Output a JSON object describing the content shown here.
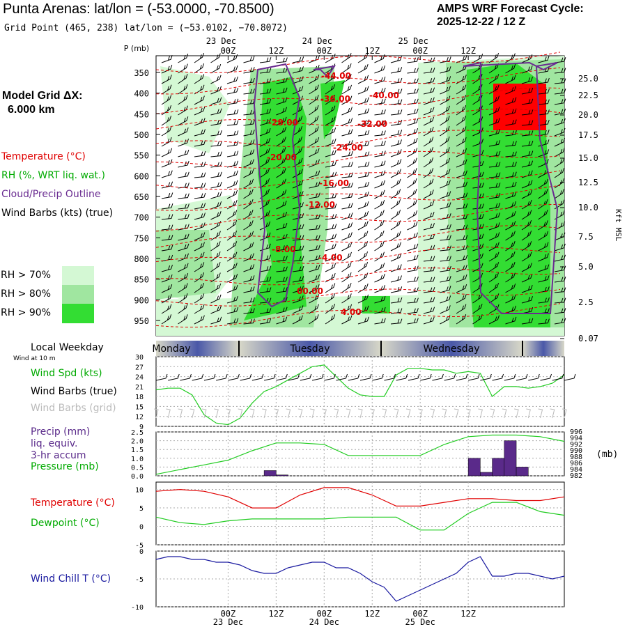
{
  "header": {
    "title": "Punta Arenas:  lat/lon = (-53.0000, -70.8500)",
    "subtitle": "Grid Point (465, 238) lat/lon = (−53.0102, −70.8072)",
    "cycle_line1": "AMPS WRF Forecast Cycle:",
    "cycle_line2": "2025-12-22 / 12  Z"
  },
  "sidebar": {
    "grid_label": "Model Grid ΔX:",
    "grid_value": "6.000 km",
    "legend": {
      "temperature": "Temperature (°C)",
      "rh": "RH (%, WRT liq. wat.)",
      "cloud": "Cloud/Precip Outline",
      "wind": "Wind Barbs (kts) (true)"
    },
    "rh_levels": [
      {
        "label": "RH > 70%",
        "color": "#d4f8d4"
      },
      {
        "label": "RH > 80%",
        "color": "#a0e6a0"
      },
      {
        "label": "RH > 90%",
        "color": "#33dd33"
      }
    ],
    "weekday_label": "Local Weekday",
    "wind_at": "Wind at 10 m"
  },
  "colors": {
    "temperature": "#e00000",
    "rh": "#00aa00",
    "cloud": "#6a2c91",
    "precip": "#5a2a8a",
    "windchill": "#1a1aa0",
    "dewpoint": "#22cc22",
    "gray_barbs": "#bbbbbb"
  },
  "chart_data": [
    {
      "type": "heatmap",
      "name_shown": "",
      "ylabel_left": "P (mb)",
      "ylabel_right": "Kft MSL",
      "time_ticks_top": [
        {
          "label": "00Z",
          "date": "23 Dec"
        },
        {
          "label": "12Z",
          "date": ""
        },
        {
          "label": "00Z",
          "date": "24 Dec"
        },
        {
          "label": "12Z",
          "date": ""
        },
        {
          "label": "00Z",
          "date": "25 Dec"
        },
        {
          "label": "12Z",
          "date": ""
        }
      ],
      "pressure_ticks": [
        350,
        400,
        450,
        500,
        550,
        600,
        650,
        700,
        750,
        800,
        850,
        900,
        950
      ],
      "height_ticks": [
        "25.0",
        "22.5",
        "20.0",
        "17.5",
        "15.0",
        "12.5",
        "10.0",
        "7.5",
        "5.0",
        "2.5",
        "0.07"
      ],
      "temperature_labels": [
        "-44.00",
        "-40.00",
        "-36.00",
        "-32.00",
        "-28.00",
        "-24.00",
        "-20.00",
        "-16.00",
        "-12.00",
        "-8.00",
        "-4.00",
        "00.00",
        "4.00"
      ]
    },
    {
      "type": "line",
      "title": "Wind Spd (kts)",
      "extra_labels": [
        "Wind Barbs (true)",
        "Wind Barbs (grid)"
      ],
      "yticks": [
        9,
        12,
        15,
        18,
        21,
        24,
        27,
        30
      ],
      "ylim": [
        9,
        30
      ],
      "weekdays": [
        "Monday",
        "Tuesday",
        "Wednesday"
      ],
      "x": [
        -18,
        -15,
        -12,
        -9,
        -6,
        -3,
        0,
        3,
        6,
        9,
        12,
        15,
        18,
        21,
        24,
        27,
        30,
        33,
        36,
        39,
        42,
        45,
        48,
        51,
        54,
        57,
        60,
        63,
        66,
        69,
        72,
        75,
        78,
        81,
        84
      ],
      "values": [
        20,
        20.5,
        20.5,
        18.5,
        12.5,
        10,
        9.5,
        11.5,
        16,
        19.5,
        21,
        23,
        25,
        27,
        27.5,
        24,
        20.5,
        18.5,
        18,
        18,
        24.5,
        26.5,
        26.5,
        26,
        26,
        25,
        25.5,
        25,
        18,
        21,
        21,
        20.5,
        21,
        22,
        24.5
      ]
    },
    {
      "type": "bar",
      "title": "Precip (mm) liq. equiv. 3-hr accum",
      "title_lines": [
        "Precip (mm)",
        "liq. equiv.",
        "3-hr accum"
      ],
      "pressure_label": "Pressure (mb)",
      "right_unit": "(mb)",
      "yticks": [
        "0.0",
        "0.5",
        "1.0",
        "1.5",
        "2.0",
        "2.5"
      ],
      "ylim": [
        0,
        2.5
      ],
      "pressure_ticks": [
        982,
        984,
        986,
        988,
        990,
        992,
        994,
        996
      ],
      "pressure_lim": [
        982,
        996
      ],
      "bars": [
        {
          "start": 9,
          "end": 12,
          "value": 0.3
        },
        {
          "start": 12,
          "end": 15,
          "value": 0.05
        },
        {
          "start": 60,
          "end": 63,
          "value": 1.0
        },
        {
          "start": 63,
          "end": 66,
          "value": 0.2
        },
        {
          "start": 66,
          "end": 69,
          "value": 1.0
        },
        {
          "start": 69,
          "end": 72,
          "value": 2.0
        },
        {
          "start": 72,
          "end": 75,
          "value": 0.5
        }
      ],
      "pressure_x": [
        -18,
        -12,
        -6,
        0,
        6,
        12,
        18,
        24,
        30,
        36,
        42,
        48,
        54,
        60,
        66,
        72,
        78,
        84
      ],
      "pressure_values": [
        982.5,
        984,
        985.5,
        987,
        990,
        992.5,
        992.5,
        992,
        988.5,
        988.5,
        988.5,
        988.5,
        992,
        994.5,
        995,
        995,
        994.5,
        993
      ]
    },
    {
      "type": "line",
      "title": "Temperature (°C)",
      "series_labels": [
        "Temperature (°C)",
        "Dewpoint (°C)"
      ],
      "yticks": [
        -5,
        0,
        5,
        10
      ],
      "ylim": [
        -5,
        12
      ],
      "x": [
        -18,
        -12,
        -6,
        0,
        6,
        12,
        18,
        24,
        30,
        36,
        42,
        48,
        54,
        60,
        66,
        72,
        78,
        84
      ],
      "temperature": [
        9.5,
        10,
        9.5,
        8,
        5,
        5,
        8.5,
        10.5,
        10.5,
        8.5,
        5.5,
        5.5,
        6.5,
        7.5,
        7.5,
        7,
        7,
        8
      ],
      "dewpoint": [
        2.5,
        1,
        0.5,
        1.5,
        2,
        2,
        2,
        2,
        2.5,
        2.5,
        2.5,
        -1,
        -1,
        3.5,
        6.5,
        6.5,
        4,
        3
      ]
    },
    {
      "type": "line",
      "title": "Wind Chill T (°C)",
      "yticks": [
        -10,
        -5,
        0
      ],
      "ylim": [
        -10,
        0
      ],
      "x": [
        -18,
        -15,
        -12,
        -9,
        -6,
        -3,
        0,
        3,
        6,
        9,
        12,
        15,
        18,
        21,
        24,
        27,
        30,
        33,
        36,
        39,
        42,
        45,
        48,
        51,
        54,
        57,
        60,
        63,
        66,
        69,
        72,
        75,
        78,
        81,
        84
      ],
      "values": [
        -1.5,
        -1,
        -1,
        -1.5,
        -1.5,
        -2,
        -2,
        -2.5,
        -3.5,
        -4,
        -4,
        -3,
        -2.5,
        -2,
        -2,
        -3,
        -3,
        -4,
        -5.5,
        -6.5,
        -9,
        -8,
        -7,
        -6,
        -5,
        -4,
        -2,
        -1,
        -4.5,
        -4.5,
        -4,
        -4,
        -4.5,
        -5,
        -4.5
      ]
    }
  ],
  "bottom_axis": [
    {
      "label": "00Z",
      "date": "23 Dec"
    },
    {
      "label": "12Z",
      "date": ""
    },
    {
      "label": "00Z",
      "date": "24 Dec"
    },
    {
      "label": "12Z",
      "date": ""
    },
    {
      "label": "00Z",
      "date": "25 Dec"
    },
    {
      "label": "12Z",
      "date": ""
    }
  ]
}
